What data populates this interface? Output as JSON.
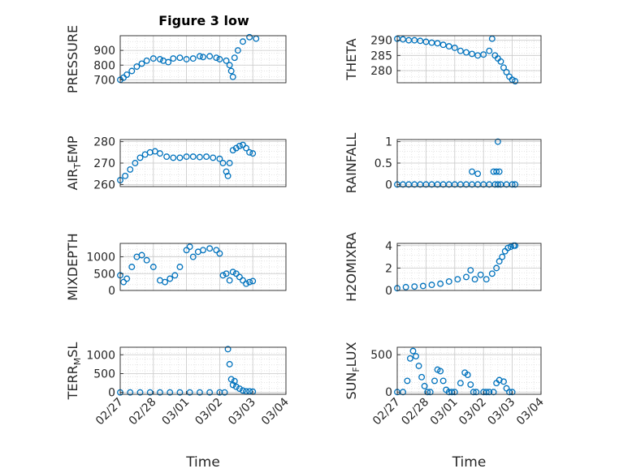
{
  "title": "Figure 3 low",
  "colors": {
    "marker": "#0072BD",
    "axis": "#262626",
    "grid": "#c8c8c8",
    "minor_grid": "#dcdcdc"
  },
  "chart_data": [
    {
      "type": "scatter",
      "ylabel": "PRESSURE",
      "title": "Figure 3 low",
      "yticks": [
        700,
        800,
        900
      ],
      "ylim": [
        680,
        1000
      ],
      "xlim": [
        0,
        5
      ],
      "series": [
        {
          "x": [
            0,
            0.1,
            0.2,
            0.35,
            0.5,
            0.65,
            0.8,
            1.0,
            1.2,
            1.3,
            1.45,
            1.6,
            1.8,
            2.0,
            2.2,
            2.4,
            2.5,
            2.7,
            2.9,
            3.0,
            3.2,
            3.3,
            3.35,
            3.4,
            3.45,
            3.55,
            3.7,
            3.9,
            4.1
          ],
          "y": [
            700,
            715,
            735,
            760,
            790,
            810,
            830,
            845,
            840,
            830,
            820,
            845,
            850,
            840,
            845,
            860,
            855,
            860,
            850,
            840,
            830,
            800,
            760,
            720,
            850,
            900,
            960,
            990,
            980
          ]
        }
      ]
    },
    {
      "type": "scatter",
      "ylabel": "THETA",
      "yticks": [
        280,
        285,
        290
      ],
      "ylim": [
        276,
        291.5
      ],
      "xlim": [
        0,
        5
      ],
      "series": [
        {
          "x": [
            0,
            0.2,
            0.4,
            0.6,
            0.8,
            1.0,
            1.2,
            1.4,
            1.6,
            1.8,
            2.0,
            2.2,
            2.4,
            2.6,
            2.8,
            3.0,
            3.2,
            3.3,
            3.4,
            3.5,
            3.6,
            3.7,
            3.8,
            3.9,
            4.0,
            4.1
          ],
          "y": [
            290.5,
            290.3,
            290,
            290,
            289.8,
            289.5,
            289.2,
            289,
            288.5,
            288,
            287.5,
            286.5,
            286,
            285.5,
            285,
            285.3,
            286.5,
            290.5,
            285,
            284,
            283,
            281,
            279.5,
            278,
            277,
            276.5
          ]
        }
      ]
    },
    {
      "type": "scatter",
      "ylabel": "AIR_TEMP",
      "yticks": [
        260,
        270,
        280
      ],
      "ylim": [
        259,
        281
      ],
      "xlim": [
        0,
        5
      ],
      "series": [
        {
          "x": [
            0,
            0.15,
            0.3,
            0.45,
            0.6,
            0.75,
            0.9,
            1.05,
            1.2,
            1.4,
            1.6,
            1.8,
            2.0,
            2.2,
            2.4,
            2.6,
            2.8,
            3.0,
            3.1,
            3.2,
            3.25,
            3.3,
            3.4,
            3.5,
            3.6,
            3.7,
            3.8,
            3.9,
            4.0
          ],
          "y": [
            262,
            264,
            267,
            270,
            272.5,
            274,
            275,
            275.5,
            274.5,
            273,
            272.5,
            272.5,
            273,
            273,
            272.8,
            273,
            272.5,
            272,
            270,
            266,
            264,
            270,
            276,
            277,
            278,
            278.5,
            277,
            275,
            274.5
          ]
        }
      ]
    },
    {
      "type": "scatter",
      "ylabel": "RAINFALL",
      "yticks": [
        0,
        0.5,
        1
      ],
      "ylim": [
        -0.05,
        1.05
      ],
      "xlim": [
        0,
        5
      ],
      "series": [
        {
          "x": [
            0,
            0.2,
            0.4,
            0.6,
            0.8,
            1.0,
            1.2,
            1.4,
            1.6,
            1.8,
            2.0,
            2.2,
            2.4,
            2.6,
            2.8,
            3.0,
            3.2,
            3.4,
            3.6,
            3.8,
            4.0,
            4.1,
            2.6,
            2.8,
            3.35,
            3.45,
            3.5,
            3.55,
            3.5
          ],
          "y": [
            0,
            0,
            0,
            0,
            0,
            0,
            0,
            0,
            0,
            0,
            0,
            0,
            0,
            0,
            0,
            0,
            0,
            0,
            0,
            0,
            0,
            0,
            0.3,
            0.25,
            0.3,
            0.3,
            1.0,
            0.3,
            0
          ]
        }
      ]
    },
    {
      "type": "scatter",
      "ylabel": "MIXDEPTH",
      "yticks": [
        0,
        500,
        1000
      ],
      "ylim": [
        0,
        1400
      ],
      "xlim": [
        0,
        5
      ],
      "series": [
        {
          "x": [
            0,
            0.1,
            0.2,
            0.35,
            0.5,
            0.65,
            0.8,
            1.0,
            1.2,
            1.35,
            1.5,
            1.65,
            1.8,
            2.0,
            2.1,
            2.2,
            2.35,
            2.5,
            2.7,
            2.9,
            3.0,
            3.1,
            3.2,
            3.3,
            3.4,
            3.5,
            3.6,
            3.7,
            3.8,
            3.9,
            4.0
          ],
          "y": [
            450,
            250,
            350,
            700,
            1000,
            1050,
            900,
            700,
            300,
            250,
            350,
            450,
            700,
            1200,
            1300,
            1000,
            1150,
            1200,
            1250,
            1200,
            1100,
            450,
            500,
            300,
            550,
            500,
            400,
            300,
            200,
            250,
            280
          ]
        }
      ]
    },
    {
      "type": "scatter",
      "ylabel": "H2OMIXRA",
      "yticks": [
        0,
        2,
        4
      ],
      "ylim": [
        0,
        4.2
      ],
      "xlim": [
        0,
        5
      ],
      "series": [
        {
          "x": [
            0,
            0.3,
            0.6,
            0.9,
            1.2,
            1.5,
            1.8,
            2.1,
            2.4,
            2.55,
            2.7,
            2.9,
            3.1,
            3.3,
            3.45,
            3.55,
            3.65,
            3.75,
            3.85,
            3.95,
            4.05,
            4.1
          ],
          "y": [
            0.2,
            0.3,
            0.35,
            0.4,
            0.5,
            0.6,
            0.8,
            1.0,
            1.2,
            1.8,
            1.0,
            1.4,
            1.0,
            1.5,
            2.0,
            2.6,
            3.0,
            3.5,
            3.8,
            3.9,
            4.0,
            4.0
          ]
        }
      ]
    },
    {
      "type": "scatter",
      "ylabel": "TERR_MSL",
      "yticks": [
        0,
        500,
        1000
      ],
      "ylim": [
        -50,
        1200
      ],
      "xlim": [
        0,
        5
      ],
      "xticklabels": [
        "02/27",
        "02/28",
        "03/01",
        "03/02",
        "03/03",
        "03/04"
      ],
      "xlabel": "Time",
      "series": [
        {
          "x": [
            0,
            0.3,
            0.6,
            0.9,
            1.2,
            1.5,
            1.8,
            2.1,
            2.4,
            2.7,
            3.0,
            3.15,
            3.25,
            3.3,
            3.35,
            3.4,
            3.45,
            3.5,
            3.6,
            3.7,
            3.8,
            3.9,
            4.0
          ],
          "y": [
            0,
            0,
            0,
            0,
            0,
            0,
            0,
            0,
            0,
            0,
            0,
            0,
            1150,
            750,
            350,
            200,
            300,
            150,
            100,
            50,
            30,
            30,
            20
          ]
        }
      ]
    },
    {
      "type": "scatter",
      "ylabel": "SUN_FLUX",
      "yticks": [
        0,
        500
      ],
      "ylim": [
        -30,
        600
      ],
      "xlim": [
        0,
        5
      ],
      "xticklabels": [
        "02/27",
        "02/28",
        "03/01",
        "03/02",
        "03/03",
        "03/04"
      ],
      "xlabel": "Time",
      "series": [
        {
          "x": [
            0,
            0.2,
            0.35,
            0.45,
            0.55,
            0.65,
            0.75,
            0.85,
            0.95,
            1.05,
            1.15,
            1.3,
            1.4,
            1.5,
            1.6,
            1.7,
            1.8,
            1.9,
            2.0,
            2.2,
            2.35,
            2.45,
            2.55,
            2.65,
            2.75,
            3.0,
            3.1,
            3.2,
            3.35,
            3.45,
            3.55,
            3.7,
            3.8,
            3.9,
            4.0
          ],
          "y": [
            0,
            0,
            150,
            450,
            550,
            480,
            350,
            200,
            80,
            0,
            0,
            150,
            300,
            280,
            150,
            30,
            0,
            0,
            0,
            120,
            260,
            230,
            100,
            0,
            0,
            0,
            0,
            0,
            0,
            120,
            160,
            140,
            50,
            0,
            0
          ]
        }
      ]
    }
  ]
}
